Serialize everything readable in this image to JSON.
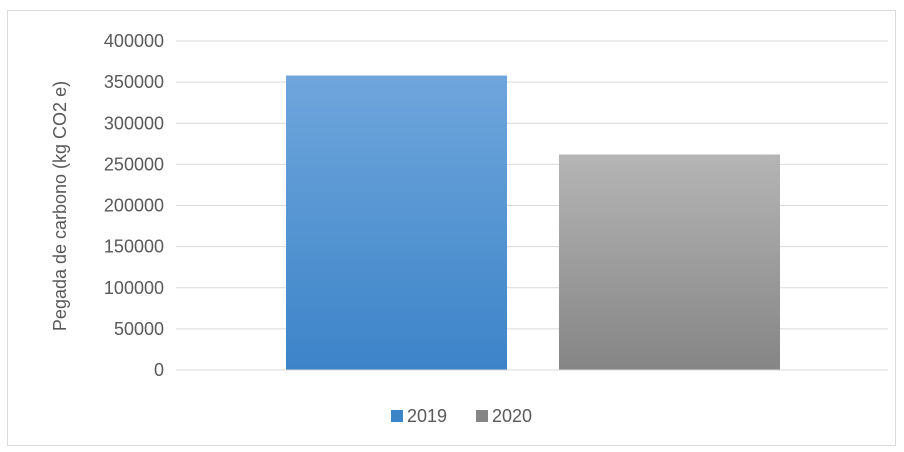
{
  "chart_data": {
    "type": "bar",
    "title": "",
    "xlabel": "",
    "ylabel": "Pegada de carbono (kg CO2 e)",
    "ylim": [
      0,
      400000
    ],
    "yticks": [
      0,
      50000,
      100000,
      150000,
      200000,
      250000,
      300000,
      350000,
      400000
    ],
    "grid": true,
    "legend_position": "bottom",
    "series": [
      {
        "name": "2019",
        "value": 358000,
        "color_top": "#6fa6dc",
        "color_bottom": "#3c84c8"
      },
      {
        "name": "2020",
        "value": 262000,
        "color_top": "#b5b5b5",
        "color_bottom": "#858585"
      }
    ]
  }
}
